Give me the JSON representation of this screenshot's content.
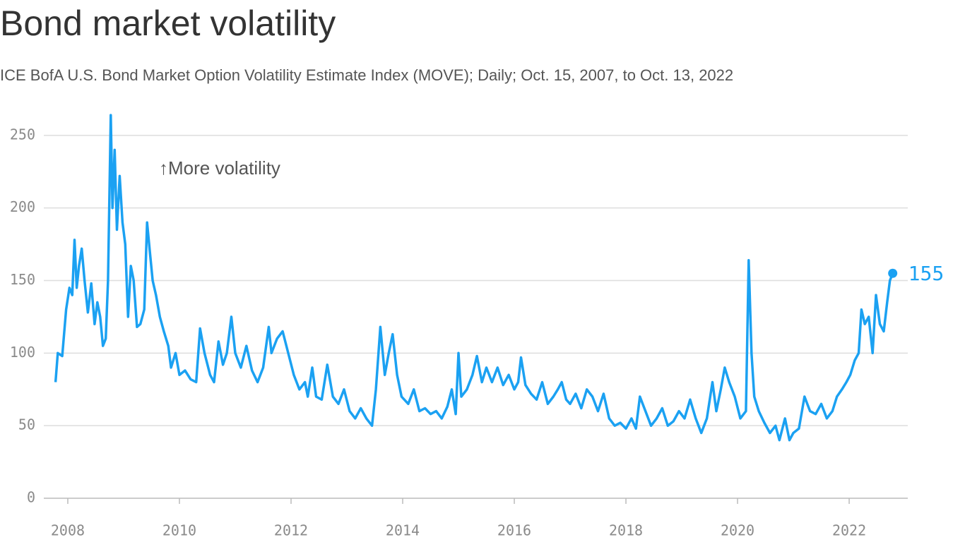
{
  "chart_data": {
    "type": "line",
    "title": "Bond market volatility",
    "subtitle": "ICE BofA U.S. Bond Market Option Volatility Estimate Index (MOVE); Daily; Oct. 15, 2007, to Oct. 13, 2022",
    "annotation": "↑More volatility",
    "x": [
      2007.78,
      2007.82,
      2007.9,
      2007.97,
      2008.03,
      2008.08,
      2008.12,
      2008.16,
      2008.2,
      2008.25,
      2008.3,
      2008.36,
      2008.42,
      2008.48,
      2008.53,
      2008.58,
      2008.63,
      2008.68,
      2008.72,
      2008.77,
      2008.8,
      2008.84,
      2008.88,
      2008.93,
      2008.98,
      2009.03,
      2009.08,
      2009.13,
      2009.18,
      2009.24,
      2009.3,
      2009.37,
      2009.42,
      2009.47,
      2009.52,
      2009.58,
      2009.65,
      2009.72,
      2009.8,
      2009.85,
      2009.93,
      2010.0,
      2010.1,
      2010.2,
      2010.3,
      2010.37,
      2010.45,
      2010.55,
      2010.62,
      2010.7,
      2010.78,
      2010.85,
      2010.93,
      2011.0,
      2011.1,
      2011.2,
      2011.3,
      2011.4,
      2011.5,
      2011.6,
      2011.65,
      2011.75,
      2011.85,
      2011.95,
      2012.05,
      2012.15,
      2012.25,
      2012.3,
      2012.38,
      2012.45,
      2012.55,
      2012.65,
      2012.75,
      2012.85,
      2012.95,
      2013.05,
      2013.15,
      2013.25,
      2013.35,
      2013.45,
      2013.52,
      2013.6,
      2013.68,
      2013.75,
      2013.82,
      2013.9,
      2013.98,
      2014.1,
      2014.2,
      2014.3,
      2014.4,
      2014.5,
      2014.6,
      2014.7,
      2014.8,
      2014.88,
      2014.95,
      2015.0,
      2015.05,
      2015.15,
      2015.25,
      2015.33,
      2015.42,
      2015.5,
      2015.6,
      2015.7,
      2015.8,
      2015.9,
      2016.0,
      2016.07,
      2016.12,
      2016.2,
      2016.3,
      2016.4,
      2016.5,
      2016.6,
      2016.7,
      2016.78,
      2016.85,
      2016.93,
      2017.0,
      2017.1,
      2017.2,
      2017.3,
      2017.4,
      2017.5,
      2017.6,
      2017.7,
      2017.8,
      2017.9,
      2018.0,
      2018.1,
      2018.18,
      2018.25,
      2018.35,
      2018.45,
      2018.55,
      2018.65,
      2018.75,
      2018.85,
      2018.95,
      2019.05,
      2019.15,
      2019.25,
      2019.35,
      2019.45,
      2019.55,
      2019.62,
      2019.7,
      2019.77,
      2019.85,
      2019.95,
      2020.05,
      2020.15,
      2020.2,
      2020.25,
      2020.3,
      2020.38,
      2020.48,
      2020.58,
      2020.68,
      2020.75,
      2020.85,
      2020.93,
      2021.0,
      2021.1,
      2021.2,
      2021.3,
      2021.4,
      2021.5,
      2021.6,
      2021.7,
      2021.78,
      2021.87,
      2021.95,
      2022.02,
      2022.1,
      2022.17,
      2022.22,
      2022.28,
      2022.35,
      2022.42,
      2022.48,
      2022.55,
      2022.62,
      2022.68,
      2022.73,
      2022.78
    ],
    "series": [
      {
        "color": "#1ba1f2",
        "values": [
          80,
          100,
          98,
          130,
          145,
          140,
          178,
          145,
          160,
          172,
          150,
          128,
          148,
          120,
          135,
          125,
          105,
          110,
          150,
          264,
          200,
          240,
          185,
          222,
          190,
          175,
          125,
          160,
          150,
          118,
          120,
          130,
          190,
          170,
          150,
          140,
          125,
          115,
          105,
          90,
          100,
          85,
          88,
          82,
          80,
          117,
          100,
          85,
          80,
          108,
          92,
          100,
          125,
          100,
          90,
          105,
          88,
          80,
          90,
          118,
          100,
          110,
          115,
          100,
          85,
          75,
          80,
          70,
          90,
          70,
          68,
          92,
          70,
          65,
          75,
          60,
          55,
          62,
          55,
          50,
          75,
          118,
          85,
          100,
          113,
          85,
          70,
          65,
          75,
          60,
          62,
          58,
          60,
          55,
          63,
          75,
          58,
          100,
          70,
          75,
          85,
          98,
          80,
          90,
          80,
          90,
          78,
          85,
          75,
          80,
          97,
          78,
          72,
          68,
          80,
          65,
          70,
          75,
          80,
          68,
          65,
          72,
          62,
          75,
          70,
          60,
          72,
          55,
          50,
          52,
          48,
          55,
          48,
          70,
          60,
          50,
          55,
          62,
          50,
          53,
          60,
          55,
          68,
          55,
          45,
          55,
          80,
          60,
          75,
          90,
          80,
          70,
          55,
          60,
          164,
          100,
          70,
          60,
          52,
          45,
          50,
          40,
          55,
          40,
          45,
          48,
          70,
          60,
          58,
          65,
          55,
          60,
          70,
          75,
          80,
          85,
          95,
          100,
          130,
          120,
          125,
          100,
          140,
          120,
          115,
          135,
          150,
          155
        ]
      }
    ],
    "xlim": [
      2007.57,
      2023.05
    ],
    "xticks": [
      2008,
      2010,
      2012,
      2014,
      2016,
      2018,
      2020,
      2022
    ],
    "ylim": [
      0,
      265
    ],
    "yticks": [
      0,
      50,
      100,
      150,
      200,
      250
    ],
    "grid": true
  }
}
